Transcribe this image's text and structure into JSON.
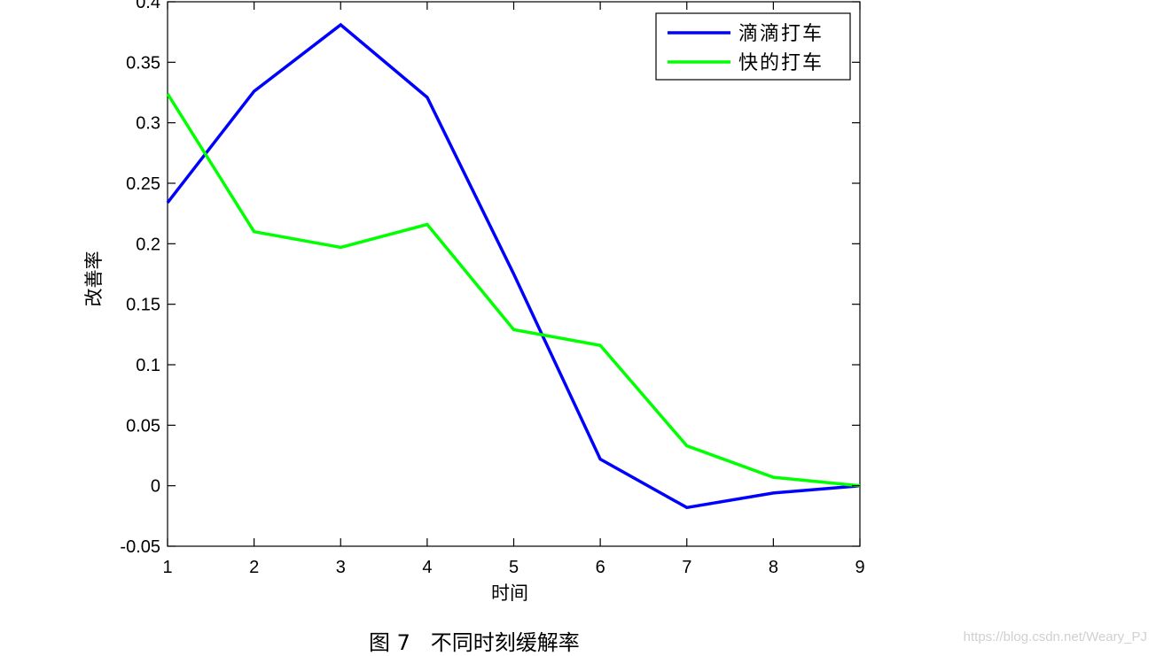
{
  "chart_data": {
    "type": "line",
    "title": "",
    "xlabel": "时间",
    "ylabel": "改善率",
    "x": [
      1,
      2,
      3,
      4,
      5,
      6,
      7,
      8,
      9
    ],
    "xlim": [
      1,
      9
    ],
    "ylim": [
      -0.05,
      0.4
    ],
    "xticks": [
      "1",
      "2",
      "3",
      "4",
      "5",
      "6",
      "7",
      "8",
      "9"
    ],
    "yticks": [
      "-0.05",
      "0",
      "0.05",
      "0.1",
      "0.15",
      "0.2",
      "0.25",
      "0.3",
      "0.35",
      "0.4"
    ],
    "grid": false,
    "legend_position": "top-right",
    "series": [
      {
        "name": "滴滴打车",
        "color": "#0000ff",
        "values": [
          0.234,
          0.326,
          0.381,
          0.321,
          0.175,
          0.022,
          -0.018,
          -0.006,
          0.0
        ]
      },
      {
        "name": "快的打车",
        "color": "#00ff00",
        "values": [
          0.324,
          0.21,
          0.197,
          0.216,
          0.129,
          0.116,
          0.033,
          0.007,
          0.0
        ]
      }
    ]
  },
  "caption": "图 7   不同时刻缓解率",
  "watermark": "https://blog.csdn.net/Weary_PJ"
}
